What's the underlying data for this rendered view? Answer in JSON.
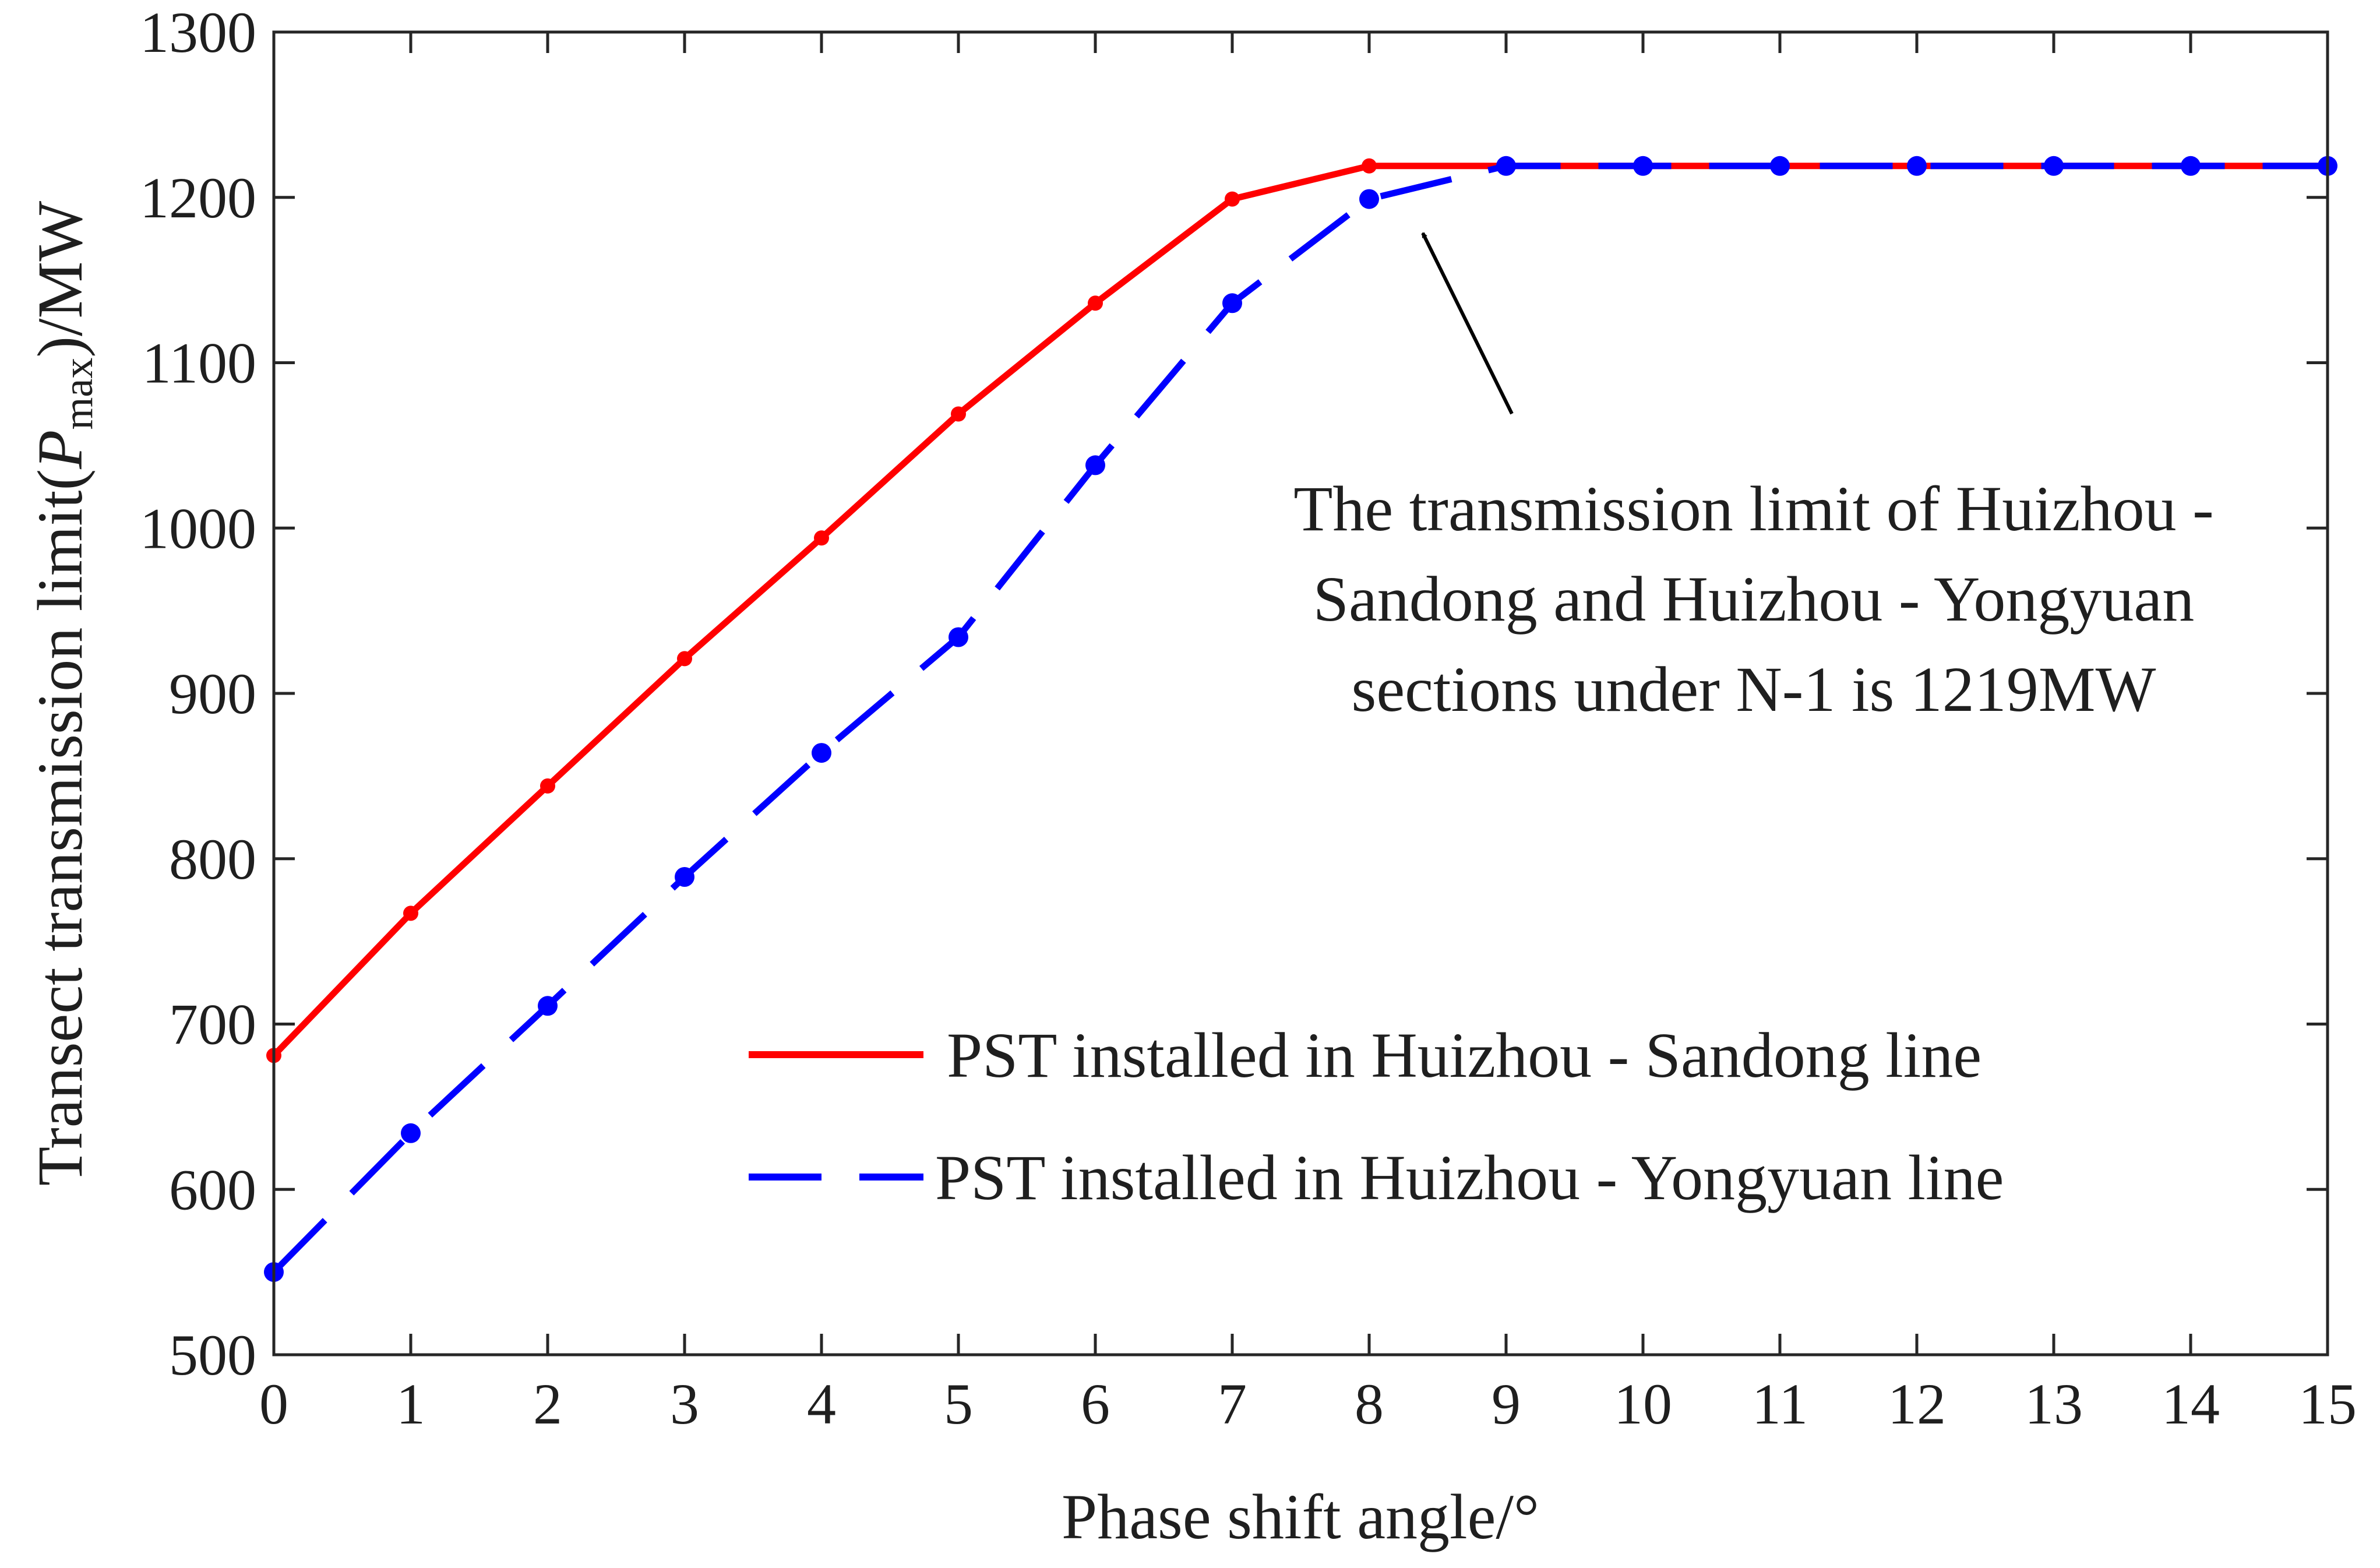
{
  "chart_data": {
    "type": "line",
    "title": "",
    "xlabel": "Phase shift angle/°",
    "ylabel": {
      "prefix": "Transect transmission limit(",
      "symbol": "P",
      "subscript": "max",
      "suffix": ")/MW"
    },
    "xlim": [
      0,
      15
    ],
    "ylim": [
      500,
      1300
    ],
    "x_ticks": [
      "0",
      "1",
      "2",
      "3",
      "4",
      "5",
      "6",
      "7",
      "8",
      "9",
      "10",
      "11",
      "12",
      "13",
      "14",
      "15"
    ],
    "y_ticks": [
      "500",
      "600",
      "700",
      "800",
      "900",
      "1000",
      "1100",
      "1200",
      "1300"
    ],
    "x": [
      0,
      1,
      2,
      3,
      4,
      5,
      6,
      7,
      8,
      9,
      10,
      11,
      12,
      13,
      14,
      15
    ],
    "series": [
      {
        "name": "PST installed in Huizhou - Sandong line",
        "color": "#ff0000",
        "style": "solid",
        "values": [
          681,
          767,
          844,
          921,
          994,
          1069,
          1136,
          1199,
          1219,
          1219,
          1219,
          1219,
          1219,
          1219,
          1219,
          1219
        ]
      },
      {
        "name": "PST installed in Huizhou - Yongyuan line",
        "color": "#0000ff",
        "style": "dashed",
        "values": [
          550,
          634,
          711,
          789,
          864,
          934,
          1038,
          1136,
          1199,
          1219,
          1219,
          1219,
          1219,
          1219,
          1219,
          1219
        ]
      }
    ],
    "annotation": {
      "lines": [
        "The transmission limit of Huizhou -",
        "Sandong and Huizhou - Yongyuan",
        "sections under N-1 is 1219MW"
      ],
      "points_to_x": 8.4,
      "points_to_y": 1182
    },
    "legend_position": "lower-right",
    "grid": false
  }
}
